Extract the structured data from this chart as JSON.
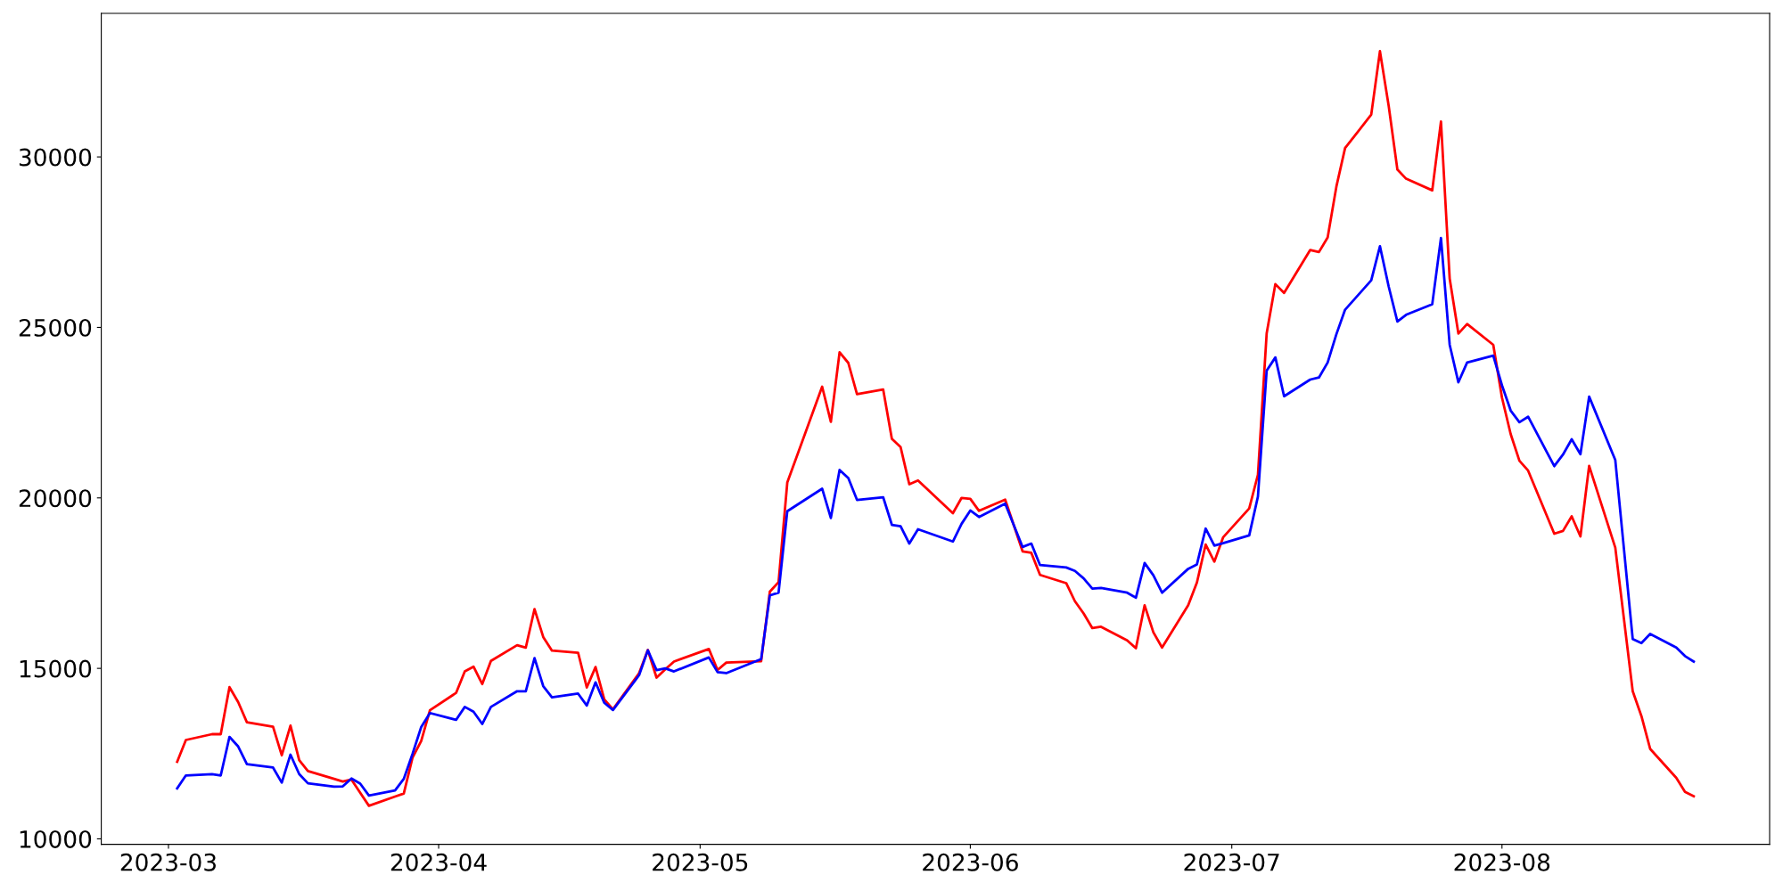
{
  "chart_data": {
    "type": "line",
    "x": [
      "2023-03-02",
      "2023-03-03",
      "2023-03-06",
      "2023-03-07",
      "2023-03-08",
      "2023-03-09",
      "2023-03-10",
      "2023-03-13",
      "2023-03-14",
      "2023-03-15",
      "2023-03-16",
      "2023-03-17",
      "2023-03-20",
      "2023-03-21",
      "2023-03-22",
      "2023-03-23",
      "2023-03-24",
      "2023-03-27",
      "2023-03-28",
      "2023-03-29",
      "2023-03-30",
      "2023-03-31",
      "2023-04-03",
      "2023-04-04",
      "2023-04-05",
      "2023-04-06",
      "2023-04-07",
      "2023-04-10",
      "2023-04-11",
      "2023-04-12",
      "2023-04-13",
      "2023-04-14",
      "2023-04-17",
      "2023-04-18",
      "2023-04-19",
      "2023-04-20",
      "2023-04-21",
      "2023-04-24",
      "2023-04-25",
      "2023-04-26",
      "2023-04-27",
      "2023-04-28",
      "2023-05-02",
      "2023-05-03",
      "2023-05-04",
      "2023-05-08",
      "2023-05-09",
      "2023-05-10",
      "2023-05-11",
      "2023-05-15",
      "2023-05-16",
      "2023-05-17",
      "2023-05-18",
      "2023-05-19",
      "2023-05-22",
      "2023-05-23",
      "2023-05-24",
      "2023-05-25",
      "2023-05-26",
      "2023-05-30",
      "2023-05-31",
      "2023-06-01",
      "2023-06-02",
      "2023-06-05",
      "2023-06-07",
      "2023-06-08",
      "2023-06-09",
      "2023-06-12",
      "2023-06-13",
      "2023-06-14",
      "2023-06-15",
      "2023-06-16",
      "2023-06-19",
      "2023-06-20",
      "2023-06-21",
      "2023-06-22",
      "2023-06-23",
      "2023-06-26",
      "2023-06-27",
      "2023-06-28",
      "2023-06-29",
      "2023-06-30",
      "2023-07-03",
      "2023-07-04",
      "2023-07-05",
      "2023-07-06",
      "2023-07-07",
      "2023-07-10",
      "2023-07-11",
      "2023-07-12",
      "2023-07-13",
      "2023-07-14",
      "2023-07-17",
      "2023-07-18",
      "2023-07-19",
      "2023-07-20",
      "2023-07-21",
      "2023-07-24",
      "2023-07-25",
      "2023-07-26",
      "2023-07-27",
      "2023-07-28",
      "2023-07-31",
      "2023-08-01",
      "2023-08-02",
      "2023-08-03",
      "2023-08-04",
      "2023-08-07",
      "2023-08-08",
      "2023-08-09",
      "2023-08-10",
      "2023-08-11",
      "2023-08-14",
      "2023-08-16",
      "2023-08-17",
      "2023-08-18",
      "2023-08-21",
      "2023-08-22",
      "2023-08-23"
    ],
    "series": [
      {
        "color": "#ff0000",
        "values": [
          12260,
          12900,
          13070,
          13070,
          14450,
          14010,
          13420,
          13290,
          12450,
          13320,
          12310,
          11990,
          11760,
          11680,
          11740,
          11350,
          10970,
          11240,
          11330,
          12380,
          12870,
          13770,
          14280,
          14910,
          15050,
          14540,
          15220,
          15680,
          15610,
          16740,
          15920,
          15520,
          15460,
          14440,
          15040,
          14090,
          13800,
          14860,
          15540,
          14730,
          14970,
          15200,
          15570,
          14950,
          15170,
          15210,
          17250,
          17530,
          20450,
          23260,
          22230,
          24270,
          23960,
          23040,
          23180,
          21730,
          21490,
          20400,
          20510,
          19550,
          20000,
          19970,
          19620,
          19950,
          18430,
          18390,
          17740,
          17500,
          16970,
          16610,
          16180,
          16220,
          15820,
          15590,
          16850,
          16060,
          15610,
          16850,
          17520,
          18630,
          18130,
          18840,
          19690,
          20680,
          24820,
          26270,
          26010,
          27270,
          27210,
          27640,
          29130,
          30260,
          31240,
          33100,
          31500,
          29630,
          29360,
          29020,
          31040,
          26430,
          24820,
          25100,
          24490,
          22940,
          21870,
          21090,
          20800,
          18950,
          19030,
          19460,
          18870,
          20940,
          18540,
          14330,
          13600,
          12640,
          11790,
          11380,
          11250
        ]
      },
      {
        "color": "#0000ff",
        "values": [
          11480,
          11860,
          11900,
          11860,
          12990,
          12710,
          12190,
          12090,
          11650,
          12470,
          11900,
          11630,
          11530,
          11540,
          11770,
          11620,
          11270,
          11420,
          11760,
          12490,
          13280,
          13690,
          13490,
          13870,
          13730,
          13370,
          13870,
          14330,
          14330,
          15300,
          14480,
          14150,
          14260,
          13910,
          14590,
          13990,
          13780,
          14800,
          15530,
          14950,
          15000,
          14910,
          15320,
          14890,
          14860,
          15270,
          17140,
          17220,
          19610,
          20270,
          19410,
          20820,
          20580,
          19940,
          20020,
          19210,
          19170,
          18660,
          19080,
          18720,
          19240,
          19630,
          19440,
          19830,
          18560,
          18660,
          18030,
          17960,
          17860,
          17640,
          17340,
          17360,
          17220,
          17070,
          18090,
          17730,
          17220,
          17920,
          18050,
          19100,
          18600,
          18670,
          18900,
          20040,
          23730,
          24120,
          22980,
          23470,
          23530,
          23970,
          24800,
          25520,
          26380,
          27380,
          26200,
          25170,
          25370,
          25680,
          27620,
          24490,
          23390,
          23970,
          24170,
          23300,
          22560,
          22220,
          22380,
          20930,
          21270,
          21720,
          21280,
          22970,
          21110,
          15860,
          15740,
          16010,
          15610,
          15360,
          15200
        ]
      }
    ],
    "xlim": [
      "2023-02-21T07:00",
      "2023-08-31T17:00"
    ],
    "xticks": [
      {
        "value": "2023-03-01",
        "label": "2023-03"
      },
      {
        "value": "2023-04-01",
        "label": "2023-04"
      },
      {
        "value": "2023-05-01",
        "label": "2023-05"
      },
      {
        "value": "2023-06-01",
        "label": "2023-06"
      },
      {
        "value": "2023-07-01",
        "label": "2023-07"
      },
      {
        "value": "2023-08-01",
        "label": "2023-08"
      }
    ],
    "ylim": [
      9840,
      34210
    ],
    "yticks": [
      10000,
      15000,
      20000,
      25000,
      30000
    ],
    "grid": false,
    "line_style": "solid"
  }
}
